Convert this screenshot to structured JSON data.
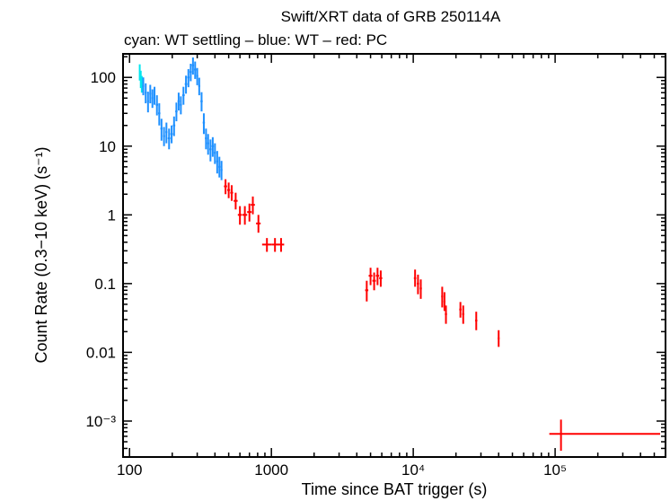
{
  "chart_data": {
    "type": "scatter",
    "title": "Swift/XRT data of GRB 250114A",
    "subtitle": "cyan: WT settling – blue: WT – red: PC",
    "xlabel": "Time since BAT trigger (s)",
    "ylabel": "Count Rate (0.3−10 keV) (s⁻¹)",
    "xscale": "log",
    "yscale": "log",
    "xlim": [
      90,
      600000
    ],
    "ylim": [
      0.0003,
      220
    ],
    "x_ticks": [
      {
        "value": 100,
        "label": "100"
      },
      {
        "value": 1000,
        "label": "1000"
      },
      {
        "value": 10000,
        "label": "10⁴"
      },
      {
        "value": 100000,
        "label": "10⁵"
      }
    ],
    "y_ticks": [
      {
        "value": 100,
        "label": "100"
      },
      {
        "value": 10,
        "label": "10"
      },
      {
        "value": 1,
        "label": "1"
      },
      {
        "value": 0.1,
        "label": "0.1"
      },
      {
        "value": 0.01,
        "label": "0.01"
      },
      {
        "value": 0.001,
        "label": "10⁻³"
      }
    ],
    "grid": false,
    "legend": "none",
    "colors": {
      "wt_settling": "#00e5ee",
      "wt": "#1e90ff",
      "pc": "#ff0000"
    },
    "series": [
      {
        "mode": "WT settling",
        "color": "#00e5ee",
        "points": [
          {
            "x": 118,
            "y": 120,
            "xerr": 1,
            "yerr_lo": 30,
            "yerr_hi": 35
          },
          {
            "x": 120,
            "y": 95,
            "xerr": 1,
            "yerr_lo": 25,
            "yerr_hi": 30
          },
          {
            "x": 122,
            "y": 80,
            "xerr": 1,
            "yerr_lo": 20,
            "yerr_hi": 25
          }
        ]
      },
      {
        "mode": "WT",
        "color": "#1e90ff",
        "points": [
          {
            "x": 125,
            "y": 75,
            "xerr": 2,
            "yerr_lo": 20,
            "yerr_hi": 25
          },
          {
            "x": 130,
            "y": 60,
            "xerr": 2,
            "yerr_lo": 18,
            "yerr_hi": 22
          },
          {
            "x": 135,
            "y": 45,
            "xerr": 2,
            "yerr_lo": 14,
            "yerr_hi": 17
          },
          {
            "x": 140,
            "y": 58,
            "xerr": 2,
            "yerr_lo": 16,
            "yerr_hi": 20
          },
          {
            "x": 145,
            "y": 50,
            "xerr": 2,
            "yerr_lo": 14,
            "yerr_hi": 17
          },
          {
            "x": 150,
            "y": 55,
            "xerr": 2,
            "yerr_lo": 15,
            "yerr_hi": 18
          },
          {
            "x": 156,
            "y": 40,
            "xerr": 3,
            "yerr_lo": 12,
            "yerr_hi": 15
          },
          {
            "x": 162,
            "y": 30,
            "xerr": 3,
            "yerr_lo": 10,
            "yerr_hi": 12
          },
          {
            "x": 168,
            "y": 18,
            "xerr": 3,
            "yerr_lo": 6,
            "yerr_hi": 7
          },
          {
            "x": 175,
            "y": 14,
            "xerr": 3,
            "yerr_lo": 4,
            "yerr_hi": 5
          },
          {
            "x": 182,
            "y": 16,
            "xerr": 3,
            "yerr_lo": 5,
            "yerr_hi": 6
          },
          {
            "x": 190,
            "y": 13,
            "xerr": 4,
            "yerr_lo": 4,
            "yerr_hi": 5
          },
          {
            "x": 198,
            "y": 15,
            "xerr": 4,
            "yerr_lo": 4,
            "yerr_hi": 5
          },
          {
            "x": 206,
            "y": 20,
            "xerr": 4,
            "yerr_lo": 6,
            "yerr_hi": 7
          },
          {
            "x": 214,
            "y": 32,
            "xerr": 4,
            "yerr_lo": 9,
            "yerr_hi": 11
          },
          {
            "x": 222,
            "y": 45,
            "xerr": 4,
            "yerr_lo": 12,
            "yerr_hi": 15
          },
          {
            "x": 230,
            "y": 40,
            "xerr": 4,
            "yerr_lo": 11,
            "yerr_hi": 13
          },
          {
            "x": 240,
            "y": 55,
            "xerr": 5,
            "yerr_lo": 15,
            "yerr_hi": 18
          },
          {
            "x": 250,
            "y": 80,
            "xerr": 5,
            "yerr_lo": 22,
            "yerr_hi": 26
          },
          {
            "x": 260,
            "y": 100,
            "xerr": 5,
            "yerr_lo": 28,
            "yerr_hi": 32
          },
          {
            "x": 270,
            "y": 120,
            "xerr": 5,
            "yerr_lo": 32,
            "yerr_hi": 38
          },
          {
            "x": 280,
            "y": 150,
            "xerr": 5,
            "yerr_lo": 40,
            "yerr_hi": 45
          },
          {
            "x": 290,
            "y": 130,
            "xerr": 5,
            "yerr_lo": 35,
            "yerr_hi": 40
          },
          {
            "x": 300,
            "y": 105,
            "xerr": 5,
            "yerr_lo": 28,
            "yerr_hi": 32
          },
          {
            "x": 310,
            "y": 75,
            "xerr": 5,
            "yerr_lo": 20,
            "yerr_hi": 24
          },
          {
            "x": 322,
            "y": 45,
            "xerr": 6,
            "yerr_lo": 13,
            "yerr_hi": 16
          },
          {
            "x": 334,
            "y": 22,
            "xerr": 6,
            "yerr_lo": 7,
            "yerr_hi": 8
          },
          {
            "x": 346,
            "y": 13,
            "xerr": 6,
            "yerr_lo": 4,
            "yerr_hi": 5
          },
          {
            "x": 358,
            "y": 11,
            "xerr": 6,
            "yerr_lo": 3.5,
            "yerr_hi": 4
          },
          {
            "x": 372,
            "y": 9,
            "xerr": 7,
            "yerr_lo": 3,
            "yerr_hi": 3.5
          },
          {
            "x": 386,
            "y": 10,
            "xerr": 7,
            "yerr_lo": 3,
            "yerr_hi": 3.5
          },
          {
            "x": 400,
            "y": 8,
            "xerr": 7,
            "yerr_lo": 2.5,
            "yerr_hi": 3
          },
          {
            "x": 415,
            "y": 6,
            "xerr": 7,
            "yerr_lo": 2,
            "yerr_hi": 2.5
          },
          {
            "x": 430,
            "y": 5,
            "xerr": 7,
            "yerr_lo": 1.5,
            "yerr_hi": 2
          },
          {
            "x": 445,
            "y": 4.5,
            "xerr": 7,
            "yerr_lo": 1.3,
            "yerr_hi": 1.6
          }
        ]
      },
      {
        "mode": "PC",
        "color": "#ff0000",
        "points": [
          {
            "x": 475,
            "y": 2.6,
            "xerr": 12,
            "yerr_lo": 0.6,
            "yerr_hi": 0.7
          },
          {
            "x": 500,
            "y": 2.3,
            "xerr": 12,
            "yerr_lo": 0.55,
            "yerr_hi": 0.65
          },
          {
            "x": 525,
            "y": 2.1,
            "xerr": 12,
            "yerr_lo": 0.5,
            "yerr_hi": 0.6
          },
          {
            "x": 560,
            "y": 1.6,
            "xerr": 18,
            "yerr_lo": 0.4,
            "yerr_hi": 0.5
          },
          {
            "x": 600,
            "y": 1.0,
            "xerr": 20,
            "yerr_lo": 0.28,
            "yerr_hi": 0.34
          },
          {
            "x": 650,
            "y": 1.0,
            "xerr": 25,
            "yerr_lo": 0.28,
            "yerr_hi": 0.34
          },
          {
            "x": 700,
            "y": 1.1,
            "xerr": 25,
            "yerr_lo": 0.3,
            "yerr_hi": 0.36
          },
          {
            "x": 740,
            "y": 1.4,
            "xerr": 25,
            "yerr_lo": 0.38,
            "yerr_hi": 0.45
          },
          {
            "x": 810,
            "y": 0.75,
            "xerr": 30,
            "yerr_lo": 0.2,
            "yerr_hi": 0.25
          },
          {
            "x": 930,
            "y": 0.37,
            "xerr": 70,
            "yerr_lo": 0.08,
            "yerr_hi": 0.09
          },
          {
            "x": 1060,
            "y": 0.37,
            "xerr": 60,
            "yerr_lo": 0.08,
            "yerr_hi": 0.09
          },
          {
            "x": 1170,
            "y": 0.37,
            "xerr": 60,
            "yerr_lo": 0.08,
            "yerr_hi": 0.09
          },
          {
            "x": 4700,
            "y": 0.08,
            "xerr": 120,
            "yerr_lo": 0.025,
            "yerr_hi": 0.03
          },
          {
            "x": 5000,
            "y": 0.13,
            "xerr": 150,
            "yerr_lo": 0.035,
            "yerr_hi": 0.04
          },
          {
            "x": 5300,
            "y": 0.11,
            "xerr": 150,
            "yerr_lo": 0.03,
            "yerr_hi": 0.035
          },
          {
            "x": 5600,
            "y": 0.13,
            "xerr": 150,
            "yerr_lo": 0.035,
            "yerr_hi": 0.04
          },
          {
            "x": 5900,
            "y": 0.12,
            "xerr": 150,
            "yerr_lo": 0.03,
            "yerr_hi": 0.035
          },
          {
            "x": 10300,
            "y": 0.12,
            "xerr": 200,
            "yerr_lo": 0.03,
            "yerr_hi": 0.04
          },
          {
            "x": 10800,
            "y": 0.1,
            "xerr": 200,
            "yerr_lo": 0.03,
            "yerr_hi": 0.035
          },
          {
            "x": 11300,
            "y": 0.085,
            "xerr": 200,
            "yerr_lo": 0.025,
            "yerr_hi": 0.03
          },
          {
            "x": 16000,
            "y": 0.065,
            "xerr": 250,
            "yerr_lo": 0.02,
            "yerr_hi": 0.025
          },
          {
            "x": 16600,
            "y": 0.055,
            "xerr": 250,
            "yerr_lo": 0.015,
            "yerr_hi": 0.02
          },
          {
            "x": 17000,
            "y": 0.036,
            "xerr": 300,
            "yerr_lo": 0.01,
            "yerr_hi": 0.012
          },
          {
            "x": 21500,
            "y": 0.042,
            "xerr": 400,
            "yerr_lo": 0.01,
            "yerr_hi": 0.012
          },
          {
            "x": 22500,
            "y": 0.036,
            "xerr": 400,
            "yerr_lo": 0.01,
            "yerr_hi": 0.012
          },
          {
            "x": 27800,
            "y": 0.029,
            "xerr": 500,
            "yerr_lo": 0.008,
            "yerr_hi": 0.01
          },
          {
            "x": 40000,
            "y": 0.016,
            "xerr": 600,
            "yerr_lo": 0.004,
            "yerr_hi": 0.005
          },
          {
            "x": 110000,
            "y": 0.00065,
            "xerr_lo": 19000,
            "xerr_hi": 440000,
            "yerr_lo": 0.00028,
            "yerr_hi": 0.0004
          }
        ]
      }
    ]
  }
}
